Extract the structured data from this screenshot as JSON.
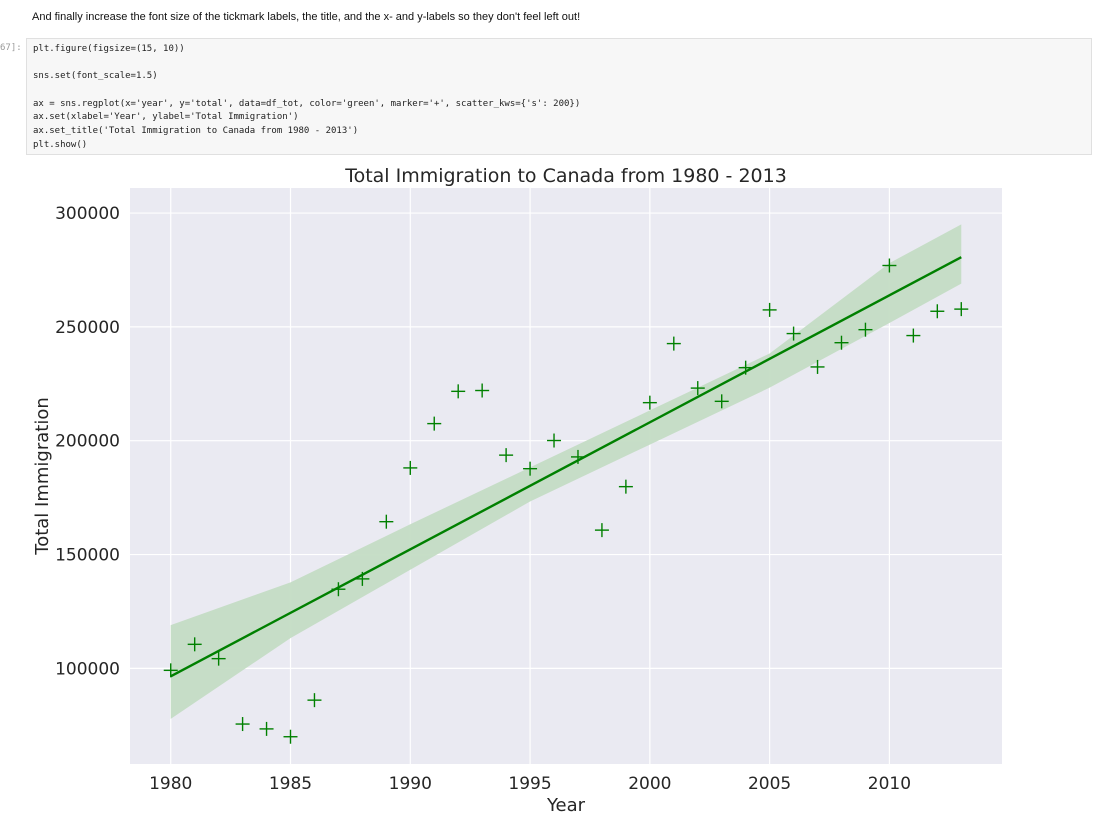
{
  "notebook": {
    "markdown_text": "And finally increase the font size of the tickmark labels, the title, and the x- and y-labels so they don't feel left out!",
    "cell_prompt": "67]:",
    "code_lines": [
      "plt.figure(figsize=(15, 10))",
      "",
      "sns.set(font_scale=1.5)",
      "",
      "ax = sns.regplot(x='year', y='total', data=df_tot, color='green', marker='+', scatter_kws={'s': 200})",
      "ax.set(xlabel='Year', ylabel='Total Immigration')",
      "ax.set_title('Total Immigration to Canada from 1980 - 2013')",
      "plt.show()"
    ]
  },
  "chart_data": {
    "type": "scatter",
    "title": "Total Immigration to Canada from 1980 - 2013",
    "xlabel": "Year",
    "ylabel": "Total Immigration",
    "xlim": [
      1978.3,
      2014.7
    ],
    "ylim": [
      58000,
      311000
    ],
    "xticks": [
      1980,
      1985,
      1990,
      1995,
      2000,
      2005,
      2010
    ],
    "xtick_labels": [
      "1980",
      "1985",
      "1990",
      "1995",
      "2000",
      "2005",
      "2010"
    ],
    "yticks": [
      100000,
      150000,
      200000,
      250000,
      300000
    ],
    "ytick_labels": [
      "100000",
      "150000",
      "200000",
      "250000",
      "300000"
    ],
    "grid": true,
    "background_color": "#eaeaf2",
    "grid_color": "#ffffff",
    "marker": "+",
    "color": "#008000",
    "band_color": "#c4dcc4",
    "x": [
      1980,
      1981,
      1982,
      1983,
      1984,
      1985,
      1986,
      1987,
      1988,
      1989,
      1990,
      1991,
      1992,
      1993,
      1994,
      1995,
      1996,
      1997,
      1998,
      1999,
      2000,
      2001,
      2002,
      2003,
      2004,
      2005,
      2006,
      2007,
      2008,
      2009,
      2010,
      2011,
      2012,
      2013
    ],
    "y": [
      99137,
      110563,
      104271,
      75550,
      73417,
      69978,
      86048,
      134771,
      139306,
      164432,
      188054,
      207509,
      221687,
      222049,
      193665,
      187712,
      200085,
      192885,
      160727,
      179818,
      216712,
      242658,
      223111,
      217297,
      232083,
      257457,
      247057,
      232405,
      243047,
      248768,
      276956,
      246184,
      256859,
      257803
    ],
    "regression_line": {
      "x": [
        1980,
        2013
      ],
      "y": [
        96500,
        280600
      ]
    },
    "confidence_band": {
      "x": [
        1980,
        1985,
        1990,
        1995,
        2000,
        2005,
        2010,
        2013
      ],
      "lower": [
        77800,
        113300,
        143300,
        173300,
        198300,
        223300,
        251700,
        269000
      ],
      "upper": [
        119000,
        137800,
        163300,
        188300,
        213300,
        238300,
        278000,
        295000
      ]
    }
  }
}
